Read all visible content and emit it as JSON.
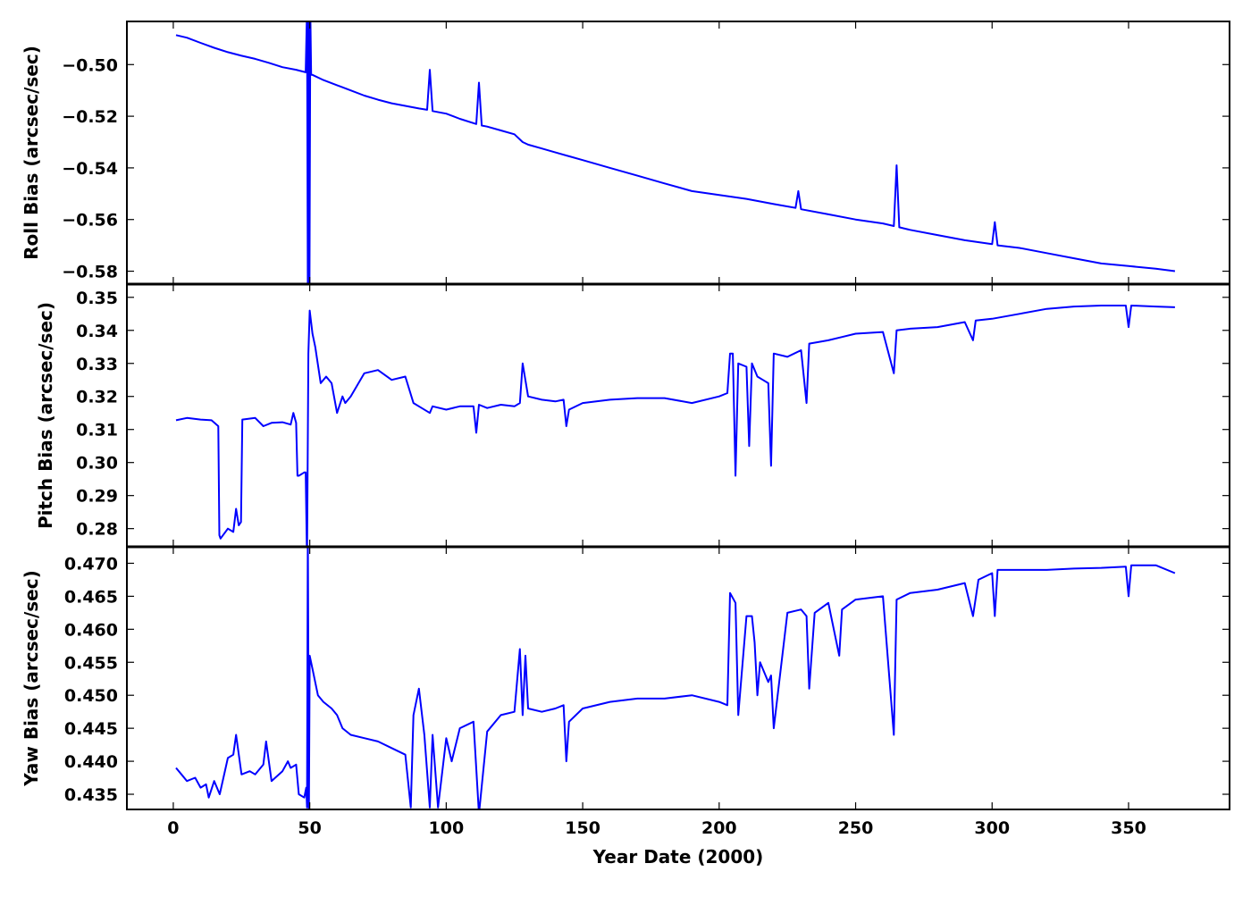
{
  "chart_data": [
    {
      "type": "line",
      "ylabel": "Roll Bias (arcsec/sec)",
      "xlim": [
        -17,
        387
      ],
      "ylim": [
        -0.585,
        -0.4833
      ],
      "yticks": [
        -0.5,
        -0.52,
        -0.54,
        -0.56,
        -0.58
      ],
      "ytick_labels": [
        "−0.50",
        "−0.52",
        "−0.54",
        "−0.56",
        "−0.58"
      ],
      "color": "#0000ff",
      "series": [
        {
          "x": [
            1,
            5,
            10,
            15,
            20,
            25,
            30,
            35,
            40,
            45,
            48.5,
            49,
            49.3,
            49.6,
            49.9,
            50.2,
            50.5,
            51,
            55,
            60,
            65,
            70,
            75,
            80,
            85,
            90,
            93,
            94,
            95,
            100,
            105,
            111,
            112,
            113,
            115,
            120,
            125,
            128,
            130,
            135,
            140,
            145,
            150,
            155,
            160,
            170,
            180,
            190,
            200,
            210,
            220,
            228,
            229,
            230,
            240,
            250,
            260,
            264,
            265,
            266,
            270,
            280,
            290,
            300,
            301,
            302,
            310,
            320,
            330,
            340,
            350,
            360,
            367
          ],
          "y": [
            -0.4886,
            -0.4896,
            -0.4916,
            -0.4935,
            -0.4952,
            -0.4966,
            -0.4978,
            -0.4993,
            -0.501,
            -0.502,
            -0.503,
            -0.478,
            -0.59,
            -0.478,
            -0.59,
            -0.48,
            -0.504,
            -0.504,
            -0.506,
            -0.508,
            -0.51,
            -0.512,
            -0.5136,
            -0.515,
            -0.516,
            -0.517,
            -0.5175,
            -0.502,
            -0.518,
            -0.519,
            -0.521,
            -0.523,
            -0.507,
            -0.5236,
            -0.524,
            -0.5255,
            -0.527,
            -0.53,
            -0.531,
            -0.5325,
            -0.534,
            -0.5355,
            -0.537,
            -0.5385,
            -0.54,
            -0.543,
            -0.546,
            -0.549,
            -0.5505,
            -0.552,
            -0.554,
            -0.5555,
            -0.549,
            -0.556,
            -0.558,
            -0.56,
            -0.5615,
            -0.5625,
            -0.539,
            -0.563,
            -0.564,
            -0.566,
            -0.568,
            -0.5695,
            -0.561,
            -0.57,
            -0.571,
            -0.573,
            -0.575,
            -0.577,
            -0.578,
            -0.579,
            -0.58
          ]
        }
      ]
    },
    {
      "type": "line",
      "ylabel": "Pitch Bias (arcsec/sec)",
      "xlim": [
        -17,
        387
      ],
      "ylim": [
        0.2745,
        0.354
      ],
      "yticks": [
        0.28,
        0.29,
        0.3,
        0.31,
        0.32,
        0.33,
        0.34,
        0.35
      ],
      "ytick_labels": [
        "0.28",
        "0.29",
        "0.30",
        "0.31",
        "0.32",
        "0.33",
        "0.34",
        "0.35"
      ],
      "color": "#0000ff",
      "series": [
        {
          "x": [
            1,
            5,
            10,
            14,
            16.5,
            16.9,
            17.3,
            20,
            22,
            23,
            24,
            24.8,
            25.3,
            30,
            33,
            36,
            40,
            43,
            44,
            45,
            45.5,
            46,
            48,
            48.5,
            49,
            49.5,
            50,
            51,
            52,
            54,
            56,
            58,
            60,
            62,
            63,
            65,
            70,
            75,
            80,
            85,
            88,
            90,
            94,
            95,
            100,
            105,
            110,
            111,
            112,
            115,
            120,
            125,
            127,
            128,
            130,
            135,
            140,
            143,
            144,
            145,
            150,
            160,
            170,
            180,
            190,
            200,
            203,
            204,
            205,
            206,
            207,
            210,
            211,
            212,
            214,
            216,
            218,
            219,
            220,
            225,
            230,
            232,
            233,
            240,
            245,
            250,
            260,
            264,
            265,
            270,
            280,
            290,
            293,
            294,
            300,
            310,
            320,
            330,
            340,
            349,
            350,
            351,
            360,
            367
          ],
          "y": [
            0.3128,
            0.3135,
            0.313,
            0.3128,
            0.311,
            0.278,
            0.277,
            0.28,
            0.279,
            0.286,
            0.281,
            0.282,
            0.313,
            0.3135,
            0.311,
            0.312,
            0.3122,
            0.3115,
            0.315,
            0.312,
            0.296,
            0.296,
            0.297,
            0.297,
            0.27,
            0.333,
            0.346,
            0.339,
            0.335,
            0.324,
            0.326,
            0.324,
            0.315,
            0.32,
            0.318,
            0.32,
            0.327,
            0.328,
            0.325,
            0.326,
            0.318,
            0.317,
            0.315,
            0.317,
            0.316,
            0.317,
            0.317,
            0.309,
            0.3175,
            0.3165,
            0.3175,
            0.317,
            0.318,
            0.33,
            0.32,
            0.319,
            0.3185,
            0.319,
            0.311,
            0.316,
            0.318,
            0.319,
            0.3195,
            0.3195,
            0.318,
            0.32,
            0.321,
            0.333,
            0.333,
            0.296,
            0.33,
            0.329,
            0.305,
            0.33,
            0.326,
            0.325,
            0.324,
            0.299,
            0.333,
            0.332,
            0.334,
            0.318,
            0.336,
            0.337,
            0.338,
            0.339,
            0.3395,
            0.327,
            0.34,
            0.3405,
            0.341,
            0.3425,
            0.337,
            0.343,
            0.3435,
            0.345,
            0.3465,
            0.3472,
            0.3475,
            0.3475,
            0.341,
            0.3475,
            0.3472,
            0.347
          ]
        }
      ]
    },
    {
      "type": "line",
      "xlabel": "Year Date (2000)",
      "ylabel": "Yaw Bias (arcsec/sec)",
      "xlim": [
        -17,
        387
      ],
      "ylim": [
        0.4327,
        0.4725
      ],
      "xticks": [
        0,
        50,
        100,
        150,
        200,
        250,
        300,
        350
      ],
      "xtick_labels": [
        "0",
        "50",
        "100",
        "150",
        "200",
        "250",
        "300",
        "350"
      ],
      "yticks": [
        0.435,
        0.44,
        0.445,
        0.45,
        0.455,
        0.46,
        0.465,
        0.47
      ],
      "ytick_labels": [
        "0.435",
        "0.440",
        "0.445",
        "0.450",
        "0.455",
        "0.460",
        "0.465",
        "0.470"
      ],
      "color": "#0000ff",
      "series": [
        {
          "x": [
            1,
            3,
            5,
            8,
            10,
            12,
            13,
            15,
            17,
            20,
            22,
            23,
            25,
            28,
            30,
            33,
            34,
            36,
            40,
            42,
            43,
            45,
            46,
            48,
            48.7,
            49,
            49.3,
            49.7,
            50,
            51,
            53,
            55,
            58,
            60,
            62,
            65,
            70,
            75,
            80,
            85,
            87,
            88,
            90,
            92,
            94,
            95,
            97,
            100,
            102,
            105,
            110,
            112,
            115,
            120,
            125,
            127,
            128,
            129,
            130,
            135,
            140,
            143,
            144,
            145,
            150,
            160,
            170,
            180,
            190,
            200,
            203,
            204,
            206,
            207,
            210,
            212,
            213,
            214,
            215,
            216,
            218,
            219,
            220,
            225,
            230,
            232,
            233,
            235,
            240,
            244,
            245,
            250,
            260,
            264,
            265,
            270,
            280,
            290,
            293,
            295,
            300,
            301,
            302,
            310,
            320,
            330,
            340,
            349,
            350,
            351,
            360,
            367
          ],
          "y": [
            0.439,
            0.438,
            0.437,
            0.4375,
            0.436,
            0.4365,
            0.4345,
            0.437,
            0.435,
            0.4405,
            0.441,
            0.444,
            0.438,
            0.4385,
            0.438,
            0.4395,
            0.443,
            0.437,
            0.4385,
            0.44,
            0.439,
            0.4395,
            0.435,
            0.4345,
            0.436,
            0.433,
            0.476,
            0.432,
            0.456,
            0.454,
            0.45,
            0.449,
            0.448,
            0.447,
            0.445,
            0.444,
            0.4435,
            0.443,
            0.442,
            0.441,
            0.433,
            0.447,
            0.451,
            0.444,
            0.433,
            0.444,
            0.433,
            0.4435,
            0.44,
            0.445,
            0.446,
            0.432,
            0.4445,
            0.447,
            0.4475,
            0.457,
            0.447,
            0.456,
            0.448,
            0.4475,
            0.448,
            0.4485,
            0.44,
            0.446,
            0.448,
            0.449,
            0.4495,
            0.4495,
            0.45,
            0.449,
            0.4485,
            0.4655,
            0.464,
            0.447,
            0.462,
            0.462,
            0.458,
            0.45,
            0.455,
            0.454,
            0.452,
            0.453,
            0.445,
            0.4625,
            0.463,
            0.462,
            0.451,
            0.4625,
            0.464,
            0.456,
            0.463,
            0.4645,
            0.465,
            0.444,
            0.4645,
            0.4655,
            0.466,
            0.467,
            0.462,
            0.4675,
            0.4685,
            0.462,
            0.469,
            0.469,
            0.469,
            0.4692,
            0.4693,
            0.4695,
            0.465,
            0.4697,
            0.4697,
            0.4685
          ]
        }
      ]
    }
  ]
}
